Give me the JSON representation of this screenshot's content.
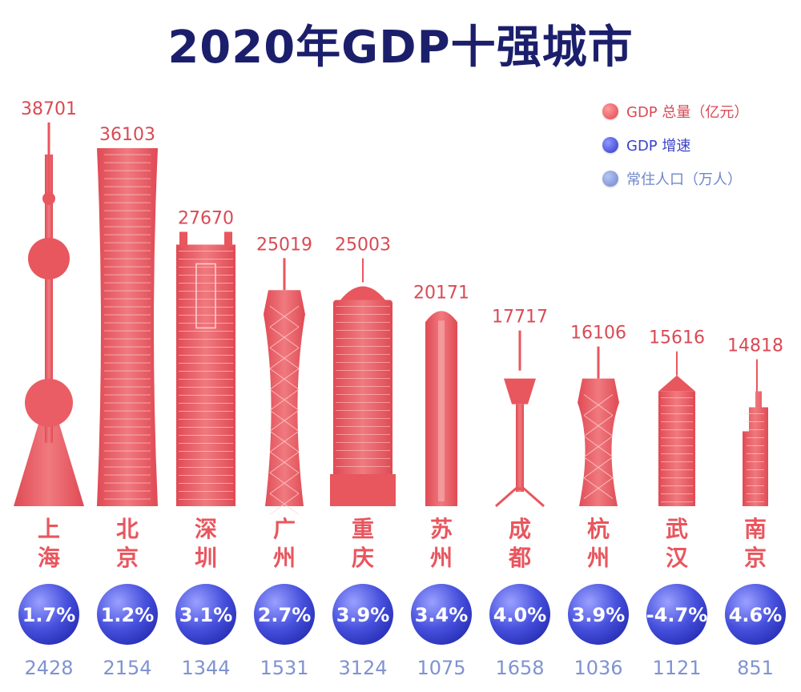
{
  "title": "2020年GDP十强城市",
  "legend": {
    "gdp": "GDP 总量（亿元）",
    "growth": "GDP 增速",
    "population": "常住人口（万人）"
  },
  "colors": {
    "gdp": "#e8565e",
    "gdp_light": "#f6a0a2",
    "growth": "#3d48d6",
    "population": "#7f93cf",
    "title": "#1b1f6b"
  },
  "chart_data": {
    "type": "bar",
    "categories": [
      "上海",
      "北京",
      "深圳",
      "广州",
      "重庆",
      "苏州",
      "成都",
      "杭州",
      "武汉",
      "南京"
    ],
    "series": [
      {
        "name": "GDP 总量（亿元）",
        "values": [
          38701,
          36103,
          27670,
          25019,
          25003,
          20171,
          17717,
          16106,
          15616,
          14818
        ]
      },
      {
        "name": "GDP 增速",
        "values": [
          "1.7%",
          "1.2%",
          "3.1%",
          "2.7%",
          "3.9%",
          "3.4%",
          "4.0%",
          "3.9%",
          "-4.7%",
          "4.6%"
        ]
      },
      {
        "name": "常住人口（万人）",
        "values": [
          2428,
          2154,
          1344,
          1531,
          3124,
          1075,
          1658,
          1036,
          1121,
          851
        ]
      }
    ],
    "building_styles": [
      "tv-tower",
      "tall-slab",
      "twin-top",
      "twisted",
      "capitol",
      "rounded",
      "thin-tower",
      "twisted",
      "block",
      "stepped"
    ]
  }
}
